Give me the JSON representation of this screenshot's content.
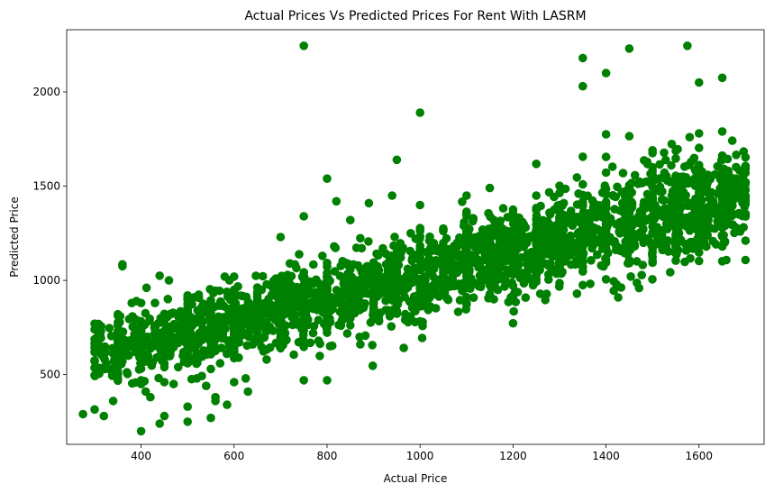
{
  "chart_data": {
    "type": "scatter",
    "title": "Actual Prices Vs Predicted Prices For Rent With LASRM",
    "xlabel": "Actual Price",
    "ylabel": "Predicted Price",
    "xlim": [
      240,
      1740
    ],
    "ylim": [
      130,
      2330
    ],
    "xticks": [
      400,
      600,
      800,
      1000,
      1200,
      1400,
      1600
    ],
    "yticks": [
      500,
      1000,
      1500,
      2000
    ],
    "grid": false,
    "legend": "none",
    "marker_color": "#008000",
    "points": [
      [
        275,
        290
      ],
      [
        300,
        315
      ],
      [
        300,
        740
      ],
      [
        300,
        770
      ],
      [
        310,
        505
      ],
      [
        320,
        280
      ],
      [
        340,
        360
      ],
      [
        350,
        600
      ],
      [
        350,
        760
      ],
      [
        350,
        820
      ],
      [
        355,
        810
      ],
      [
        360,
        1075
      ],
      [
        360,
        1085
      ],
      [
        360,
        630
      ],
      [
        380,
        880
      ],
      [
        390,
        890
      ],
      [
        400,
        200
      ],
      [
        400,
        450
      ],
      [
        400,
        470
      ],
      [
        400,
        560
      ],
      [
        400,
        610
      ],
      [
        400,
        650
      ],
      [
        400,
        760
      ],
      [
        400,
        880
      ],
      [
        410,
        410
      ],
      [
        420,
        380
      ],
      [
        430,
        740
      ],
      [
        430,
        880
      ],
      [
        440,
        240
      ],
      [
        440,
        1025
      ],
      [
        450,
        280
      ],
      [
        450,
        460
      ],
      [
        450,
        540
      ],
      [
        450,
        820
      ],
      [
        460,
        1000
      ],
      [
        470,
        450
      ],
      [
        480,
        540
      ],
      [
        480,
        700
      ],
      [
        490,
        600
      ],
      [
        500,
        250
      ],
      [
        500,
        330
      ],
      [
        500,
        560
      ],
      [
        500,
        920
      ],
      [
        510,
        760
      ],
      [
        520,
        480
      ],
      [
        525,
        720
      ],
      [
        530,
        600
      ],
      [
        540,
        440
      ],
      [
        550,
        530
      ],
      [
        550,
        270
      ],
      [
        550,
        680
      ],
      [
        560,
        360
      ],
      [
        560,
        380
      ],
      [
        565,
        740
      ],
      [
        570,
        560
      ],
      [
        580,
        1020
      ],
      [
        585,
        340
      ],
      [
        590,
        1000
      ],
      [
        590,
        680
      ],
      [
        600,
        460
      ],
      [
        600,
        730
      ],
      [
        600,
        1020
      ],
      [
        600,
        950
      ],
      [
        610,
        590
      ],
      [
        620,
        820
      ],
      [
        625,
        480
      ],
      [
        630,
        410
      ],
      [
        640,
        660
      ],
      [
        650,
        930
      ],
      [
        660,
        770
      ],
      [
        670,
        580
      ],
      [
        680,
        850
      ],
      [
        690,
        1010
      ],
      [
        700,
        960
      ],
      [
        700,
        1230
      ],
      [
        700,
        640
      ],
      [
        710,
        720
      ],
      [
        720,
        1090
      ],
      [
        730,
        780
      ],
      [
        740,
        900
      ],
      [
        750,
        2245
      ],
      [
        750,
        1340
      ],
      [
        750,
        470
      ],
      [
        760,
        870
      ],
      [
        770,
        720
      ],
      [
        780,
        990
      ],
      [
        790,
        1130
      ],
      [
        800,
        1540
      ],
      [
        800,
        470
      ],
      [
        800,
        820
      ],
      [
        810,
        910
      ],
      [
        820,
        1420
      ],
      [
        830,
        760
      ],
      [
        840,
        990
      ],
      [
        850,
        1320
      ],
      [
        860,
        870
      ],
      [
        870,
        700
      ],
      [
        880,
        1030
      ],
      [
        890,
        1410
      ],
      [
        900,
        880
      ],
      [
        910,
        1060
      ],
      [
        920,
        1170
      ],
      [
        930,
        950
      ],
      [
        940,
        1450
      ],
      [
        950,
        1640
      ],
      [
        960,
        990
      ],
      [
        970,
        1010
      ],
      [
        980,
        1250
      ],
      [
        990,
        1000
      ],
      [
        1000,
        1890
      ],
      [
        1000,
        1400
      ],
      [
        1010,
        1020
      ],
      [
        1020,
        1100
      ],
      [
        1030,
        1060
      ],
      [
        1040,
        1000
      ],
      [
        1050,
        980
      ],
      [
        1060,
        1140
      ],
      [
        1070,
        1030
      ],
      [
        1080,
        1200
      ],
      [
        1090,
        1110
      ],
      [
        1100,
        1050
      ],
      [
        1100,
        1450
      ],
      [
        1110,
        1010
      ],
      [
        1120,
        1200
      ],
      [
        1130,
        1070
      ],
      [
        1140,
        1160
      ],
      [
        1150,
        1490
      ],
      [
        1160,
        1090
      ],
      [
        1170,
        1300
      ],
      [
        1180,
        1130
      ],
      [
        1190,
        1260
      ],
      [
        1200,
        1050
      ],
      [
        1210,
        1180
      ],
      [
        1220,
        1310
      ],
      [
        1230,
        1200
      ],
      [
        1240,
        1150
      ],
      [
        1250,
        1450
      ],
      [
        1260,
        1240
      ],
      [
        1270,
        1170
      ],
      [
        1280,
        1350
      ],
      [
        1290,
        1230
      ],
      [
        1300,
        1280
      ],
      [
        1300,
        1140
      ],
      [
        1310,
        1100
      ],
      [
        1320,
        1330
      ],
      [
        1330,
        1200
      ],
      [
        1340,
        1250
      ],
      [
        1350,
        2180
      ],
      [
        1350,
        2030
      ],
      [
        1350,
        975
      ],
      [
        1360,
        1280
      ],
      [
        1370,
        1170
      ],
      [
        1380,
        1390
      ],
      [
        1390,
        1230
      ],
      [
        1400,
        2100
      ],
      [
        1400,
        1775
      ],
      [
        1400,
        1655
      ],
      [
        1410,
        1320
      ],
      [
        1420,
        1190
      ],
      [
        1430,
        1250
      ],
      [
        1440,
        1400
      ],
      [
        1450,
        2230
      ],
      [
        1450,
        1765
      ],
      [
        1450,
        1300
      ],
      [
        1460,
        1180
      ],
      [
        1470,
        1340
      ],
      [
        1480,
        1270
      ],
      [
        1490,
        1210
      ],
      [
        1500,
        1690
      ],
      [
        1500,
        1600
      ],
      [
        1500,
        1320
      ],
      [
        1510,
        1360
      ],
      [
        1520,
        1250
      ],
      [
        1530,
        1300
      ],
      [
        1540,
        1420
      ],
      [
        1550,
        1350
      ],
      [
        1560,
        1340
      ],
      [
        1570,
        1320
      ],
      [
        1575,
        2245
      ],
      [
        1580,
        1760
      ],
      [
        1590,
        1380
      ],
      [
        1600,
        2050
      ],
      [
        1600,
        1780
      ],
      [
        1600,
        1550
      ],
      [
        1600,
        1290
      ],
      [
        1610,
        1470
      ],
      [
        1620,
        1320
      ],
      [
        1630,
        1410
      ],
      [
        1640,
        1460
      ],
      [
        1650,
        2075
      ],
      [
        1650,
        1790
      ],
      [
        1650,
        1350
      ],
      [
        1660,
        1500
      ],
      [
        1670,
        1360
      ],
      [
        1680,
        1540
      ],
      [
        1690,
        1480
      ],
      [
        1700,
        1350
      ],
      [
        1700,
        1570
      ]
    ]
  }
}
